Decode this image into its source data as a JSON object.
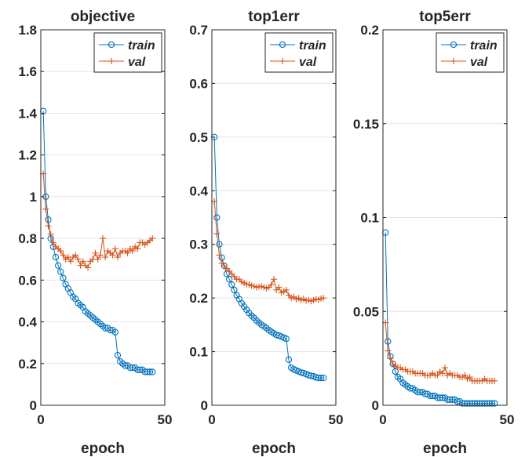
{
  "chart_data": [
    {
      "type": "line",
      "title": "objective",
      "xlabel": "epoch",
      "ylabel": "",
      "xlim": [
        0,
        50
      ],
      "ylim": [
        0,
        1.8
      ],
      "xticks": [
        0,
        50
      ],
      "xtick_labels": [
        "0",
        "50"
      ],
      "yticks": [
        0,
        0.2,
        0.4,
        0.6,
        0.8,
        1,
        1.2,
        1.4,
        1.6,
        1.8
      ],
      "ytick_labels": [
        "0",
        "0.2",
        "0.4",
        "0.6",
        "0.8",
        "1",
        "1.2",
        "1.4",
        "1.6",
        "1.8"
      ],
      "grid": true,
      "legend": "top-right",
      "series": [
        {
          "name": "train",
          "color": "#0072BD",
          "marker": "circle",
          "x": [
            1,
            2,
            3,
            4,
            5,
            6,
            7,
            8,
            9,
            10,
            11,
            12,
            13,
            14,
            15,
            16,
            17,
            18,
            19,
            20,
            21,
            22,
            23,
            24,
            25,
            26,
            27,
            28,
            29,
            30,
            31,
            32,
            33,
            34,
            35,
            36,
            37,
            38,
            39,
            40,
            41,
            42,
            43,
            44,
            45
          ],
          "y": [
            1.41,
            1.0,
            0.89,
            0.8,
            0.76,
            0.71,
            0.67,
            0.64,
            0.61,
            0.58,
            0.56,
            0.54,
            0.52,
            0.51,
            0.49,
            0.48,
            0.47,
            0.45,
            0.44,
            0.43,
            0.42,
            0.41,
            0.4,
            0.39,
            0.38,
            0.37,
            0.37,
            0.36,
            0.36,
            0.35,
            0.24,
            0.21,
            0.2,
            0.19,
            0.19,
            0.18,
            0.18,
            0.18,
            0.17,
            0.17,
            0.17,
            0.16,
            0.16,
            0.16,
            0.16
          ]
        },
        {
          "name": "val",
          "color": "#D95319",
          "marker": "plus",
          "x": [
            1,
            2,
            3,
            4,
            5,
            6,
            7,
            8,
            9,
            10,
            11,
            12,
            13,
            14,
            15,
            16,
            17,
            18,
            19,
            20,
            21,
            22,
            23,
            24,
            25,
            26,
            27,
            28,
            29,
            30,
            31,
            32,
            33,
            34,
            35,
            36,
            37,
            38,
            39,
            40,
            41,
            42,
            43,
            44,
            45
          ],
          "y": [
            1.11,
            0.94,
            0.86,
            0.82,
            0.78,
            0.76,
            0.75,
            0.74,
            0.72,
            0.7,
            0.71,
            0.69,
            0.71,
            0.72,
            0.7,
            0.67,
            0.69,
            0.67,
            0.66,
            0.69,
            0.7,
            0.73,
            0.7,
            0.72,
            0.8,
            0.71,
            0.74,
            0.73,
            0.72,
            0.75,
            0.71,
            0.73,
            0.74,
            0.74,
            0.73,
            0.75,
            0.74,
            0.76,
            0.75,
            0.78,
            0.78,
            0.77,
            0.78,
            0.79,
            0.8
          ]
        }
      ]
    },
    {
      "type": "line",
      "title": "top1err",
      "xlabel": "epoch",
      "ylabel": "",
      "xlim": [
        0,
        50
      ],
      "ylim": [
        0,
        0.7
      ],
      "xticks": [
        0,
        50
      ],
      "xtick_labels": [
        "0",
        "50"
      ],
      "yticks": [
        0,
        0.1,
        0.2,
        0.3,
        0.4,
        0.5,
        0.6,
        0.7
      ],
      "ytick_labels": [
        "0",
        "0.1",
        "0.2",
        "0.3",
        "0.4",
        "0.5",
        "0.6",
        "0.7"
      ],
      "grid": true,
      "legend": "top-right",
      "series": [
        {
          "name": "train",
          "color": "#0072BD",
          "marker": "circle",
          "x": [
            1,
            2,
            3,
            4,
            5,
            6,
            7,
            8,
            9,
            10,
            11,
            12,
            13,
            14,
            15,
            16,
            17,
            18,
            19,
            20,
            21,
            22,
            23,
            24,
            25,
            26,
            27,
            28,
            29,
            30,
            31,
            32,
            33,
            34,
            35,
            36,
            37,
            38,
            39,
            40,
            41,
            42,
            43,
            44,
            45
          ],
          "y": [
            0.5,
            0.35,
            0.3,
            0.275,
            0.26,
            0.245,
            0.235,
            0.225,
            0.215,
            0.205,
            0.198,
            0.19,
            0.184,
            0.178,
            0.172,
            0.167,
            0.163,
            0.158,
            0.154,
            0.15,
            0.147,
            0.144,
            0.14,
            0.137,
            0.134,
            0.131,
            0.13,
            0.128,
            0.126,
            0.124,
            0.085,
            0.07,
            0.067,
            0.065,
            0.063,
            0.061,
            0.06,
            0.058,
            0.056,
            0.055,
            0.054,
            0.052,
            0.051,
            0.051,
            0.051
          ]
        },
        {
          "name": "val",
          "color": "#D95319",
          "marker": "plus",
          "x": [
            1,
            2,
            3,
            4,
            5,
            6,
            7,
            8,
            9,
            10,
            11,
            12,
            13,
            14,
            15,
            16,
            17,
            18,
            19,
            20,
            21,
            22,
            23,
            24,
            25,
            26,
            27,
            28,
            29,
            30,
            31,
            32,
            33,
            34,
            35,
            36,
            37,
            38,
            39,
            40,
            41,
            42,
            43,
            44,
            45
          ],
          "y": [
            0.38,
            0.32,
            0.28,
            0.265,
            0.26,
            0.255,
            0.25,
            0.245,
            0.24,
            0.235,
            0.235,
            0.23,
            0.228,
            0.226,
            0.225,
            0.223,
            0.222,
            0.22,
            0.221,
            0.222,
            0.22,
            0.218,
            0.22,
            0.225,
            0.235,
            0.215,
            0.22,
            0.21,
            0.212,
            0.215,
            0.205,
            0.2,
            0.202,
            0.198,
            0.2,
            0.196,
            0.198,
            0.195,
            0.196,
            0.194,
            0.196,
            0.198,
            0.197,
            0.199,
            0.2
          ]
        }
      ]
    },
    {
      "type": "line",
      "title": "top5err",
      "xlabel": "epoch",
      "ylabel": "",
      "xlim": [
        0,
        50
      ],
      "ylim": [
        0,
        0.2
      ],
      "xticks": [
        0,
        50
      ],
      "xtick_labels": [
        "0",
        "50"
      ],
      "yticks": [
        0,
        0.05,
        0.1,
        0.15,
        0.2
      ],
      "ytick_labels": [
        "0",
        "0.05",
        "0.1",
        "0.15",
        "0.2"
      ],
      "grid": true,
      "legend": "top-right",
      "series": [
        {
          "name": "train",
          "color": "#0072BD",
          "marker": "circle",
          "x": [
            1,
            2,
            3,
            4,
            5,
            6,
            7,
            8,
            9,
            10,
            11,
            12,
            13,
            14,
            15,
            16,
            17,
            18,
            19,
            20,
            21,
            22,
            23,
            24,
            25,
            26,
            27,
            28,
            29,
            30,
            31,
            32,
            33,
            34,
            35,
            36,
            37,
            38,
            39,
            40,
            41,
            42,
            43,
            44,
            45
          ],
          "y": [
            0.092,
            0.034,
            0.026,
            0.022,
            0.018,
            0.015,
            0.014,
            0.012,
            0.011,
            0.01,
            0.009,
            0.009,
            0.008,
            0.007,
            0.007,
            0.007,
            0.006,
            0.006,
            0.005,
            0.005,
            0.005,
            0.004,
            0.004,
            0.004,
            0.004,
            0.003,
            0.003,
            0.003,
            0.003,
            0.002,
            0.002,
            0.001,
            0.001,
            0.001,
            0.001,
            0.001,
            0.001,
            0.001,
            0.001,
            0.001,
            0.001,
            0.001,
            0.001,
            0.001,
            0.001
          ]
        },
        {
          "name": "val",
          "color": "#D95319",
          "marker": "plus",
          "x": [
            1,
            2,
            3,
            4,
            5,
            6,
            7,
            8,
            9,
            10,
            11,
            12,
            13,
            14,
            15,
            16,
            17,
            18,
            19,
            20,
            21,
            22,
            23,
            24,
            25,
            26,
            27,
            28,
            29,
            30,
            31,
            32,
            33,
            34,
            35,
            36,
            37,
            38,
            39,
            40,
            41,
            42,
            43,
            44,
            45
          ],
          "y": [
            0.044,
            0.029,
            0.025,
            0.022,
            0.021,
            0.02,
            0.02,
            0.019,
            0.019,
            0.018,
            0.018,
            0.018,
            0.017,
            0.017,
            0.017,
            0.017,
            0.016,
            0.016,
            0.016,
            0.017,
            0.016,
            0.016,
            0.018,
            0.017,
            0.02,
            0.016,
            0.017,
            0.016,
            0.016,
            0.016,
            0.015,
            0.015,
            0.016,
            0.014,
            0.015,
            0.013,
            0.013,
            0.013,
            0.013,
            0.013,
            0.014,
            0.013,
            0.013,
            0.013,
            0.013
          ]
        }
      ]
    }
  ]
}
